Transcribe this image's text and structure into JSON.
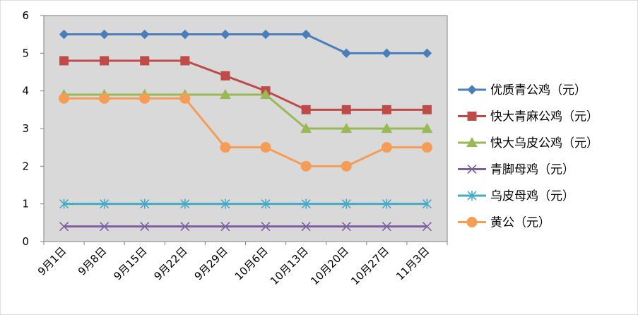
{
  "chart_data": {
    "type": "line",
    "categories": [
      "9月1日",
      "9月8日",
      "9月15日",
      "9月22日",
      "9月29日",
      "10月6日",
      "10月13日",
      "10月20日",
      "10月27日",
      "11月3日"
    ],
    "ylim": [
      0,
      6
    ],
    "yticks": [
      "0",
      "1",
      "2",
      "3",
      "4",
      "5",
      "6"
    ],
    "grid": false,
    "plot_background": "#d9d9d9",
    "legend_position": "right",
    "series": [
      {
        "name": "优质青公鸡（元）",
        "color": "#4a7ebb",
        "marker": "diamond",
        "values": [
          5.5,
          5.5,
          5.5,
          5.5,
          5.5,
          5.5,
          5.5,
          5,
          5,
          5
        ]
      },
      {
        "name": "快大青麻公鸡（元）",
        "color": "#be4b48",
        "marker": "square",
        "values": [
          4.8,
          4.8,
          4.8,
          4.8,
          4.4,
          4,
          3.5,
          3.5,
          3.5,
          3.5
        ]
      },
      {
        "name": "快大乌皮公鸡（元）",
        "color": "#98b954",
        "marker": "triangle",
        "values": [
          3.9,
          3.9,
          3.9,
          3.9,
          3.9,
          3.9,
          3,
          3,
          3,
          3
        ]
      },
      {
        "name": "青脚母鸡（元）",
        "color": "#7d5fa0",
        "marker": "x",
        "values": [
          0.4,
          0.4,
          0.4,
          0.4,
          0.4,
          0.4,
          0.4,
          0.4,
          0.4,
          0.4
        ]
      },
      {
        "name": "乌皮母鸡（元）",
        "color": "#46aac5",
        "marker": "star",
        "values": [
          1,
          1,
          1,
          1,
          1,
          1,
          1,
          1,
          1,
          1
        ]
      },
      {
        "name": "黄公（元）",
        "color": "#f59d56",
        "marker": "circle",
        "values": [
          3.8,
          3.8,
          3.8,
          3.8,
          2.5,
          2.5,
          2,
          2,
          2.5,
          2.5
        ]
      }
    ]
  }
}
